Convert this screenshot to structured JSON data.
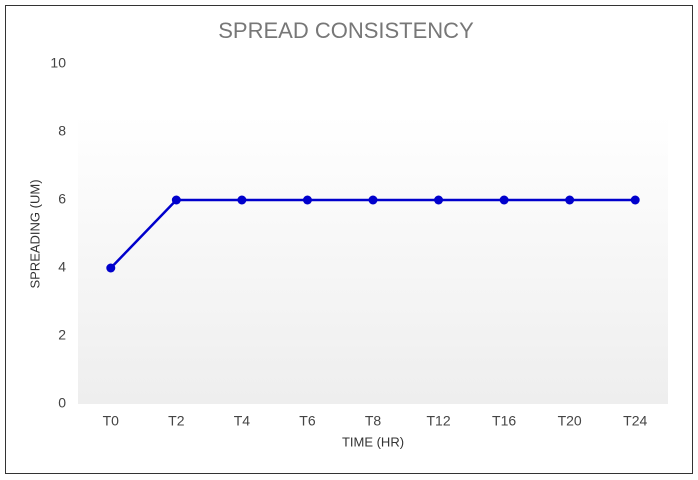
{
  "chart_data": {
    "type": "line",
    "title": "SPREAD CONSISTENCY",
    "x_label": "TIME (HR)",
    "y_label": "SPREADING (UM)",
    "categories": [
      "T0",
      "T2",
      "T4",
      "T6",
      "T8",
      "T12",
      "T16",
      "T20",
      "T24"
    ],
    "values": [
      4,
      6,
      6,
      6,
      6,
      6,
      6,
      6,
      6
    ],
    "color": "#0000cc",
    "ylim": [
      0,
      10
    ],
    "yticks": [
      0,
      2,
      4,
      6,
      8,
      10
    ],
    "grid": false
  }
}
